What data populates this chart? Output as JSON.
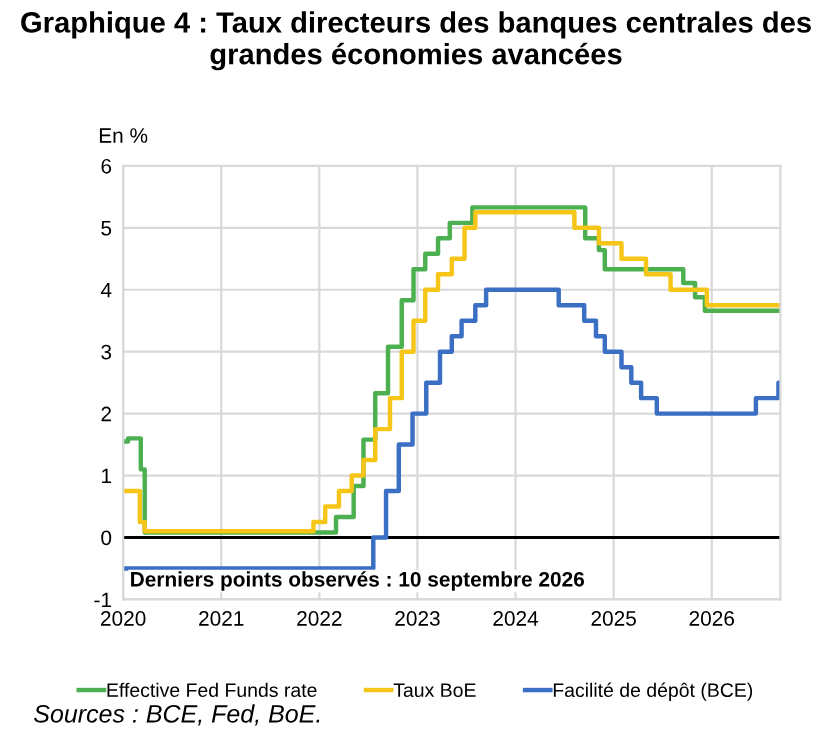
{
  "chart_data": {
    "type": "step",
    "title": "Graphique 4 : Taux directeurs des banques centrales des grandes économies avancées",
    "ylabel": "En %",
    "annotations": [
      "Derniers points observés : 10 septembre 2026",
      "Sources : BCE, Fed, BoE."
    ],
    "xlim": [
      2020,
      2026.7
    ],
    "xticks": [
      2020,
      2021,
      2022,
      2023,
      2024,
      2025,
      2026
    ],
    "ylim": [
      -1,
      6
    ],
    "yticks": [
      -1,
      0,
      1,
      2,
      3,
      4,
      5,
      6
    ],
    "grid": true,
    "legend": "bottom",
    "line_style": "solid",
    "marker": "none",
    "ref_lines": [
      {
        "axis": "y",
        "value": 0,
        "color": "#000000"
      }
    ],
    "series": [
      {
        "name": "Effective Fed Funds rate",
        "color": "#4caf50",
        "x": [
          2020.0,
          2020.05,
          2020.18,
          2020.22,
          2022.17,
          2022.35,
          2022.45,
          2022.57,
          2022.7,
          2022.84,
          2022.96,
          2023.08,
          2023.21,
          2023.33,
          2023.56,
          2024.71,
          2024.85,
          2024.91,
          2025.71,
          2025.83,
          2025.93,
          2026.7
        ],
        "values": [
          1.55,
          1.6,
          1.1,
          0.08,
          0.33,
          0.83,
          1.58,
          2.33,
          3.08,
          3.83,
          4.33,
          4.58,
          4.83,
          5.08,
          5.33,
          4.83,
          4.64,
          4.33,
          4.11,
          3.88,
          3.66,
          3.66
        ]
      },
      {
        "name": "Taux BoE",
        "color": "#f5c518",
        "x": [
          2020.0,
          2020.17,
          2020.22,
          2021.94,
          2022.06,
          2022.2,
          2022.33,
          2022.45,
          2022.57,
          2022.72,
          2022.84,
          2022.96,
          2023.08,
          2023.21,
          2023.35,
          2023.48,
          2023.59,
          2024.6,
          2024.85,
          2025.08,
          2025.33,
          2025.58,
          2025.95,
          2026.7
        ],
        "values": [
          0.75,
          0.25,
          0.1,
          0.25,
          0.5,
          0.75,
          1.0,
          1.25,
          1.75,
          2.25,
          3.0,
          3.5,
          4.0,
          4.25,
          4.5,
          5.0,
          5.25,
          5.0,
          4.75,
          4.5,
          4.25,
          4.0,
          3.75,
          3.75
        ]
      },
      {
        "name": "Facilité de dépôt (BCE)",
        "color": "#3a6fc4",
        "x": [
          2020.0,
          2022.55,
          2022.68,
          2022.81,
          2022.95,
          2023.09,
          2023.23,
          2023.35,
          2023.45,
          2023.59,
          2023.7,
          2024.44,
          2024.7,
          2024.82,
          2024.91,
          2025.08,
          2025.18,
          2025.28,
          2025.44,
          2026.45,
          2026.68,
          2026.7
        ],
        "values": [
          -0.5,
          0.0,
          0.75,
          1.5,
          2.0,
          2.5,
          3.0,
          3.25,
          3.5,
          3.75,
          4.0,
          3.75,
          3.5,
          3.25,
          3.0,
          2.75,
          2.5,
          2.25,
          2.0,
          2.25,
          2.5,
          2.5
        ]
      }
    ]
  }
}
